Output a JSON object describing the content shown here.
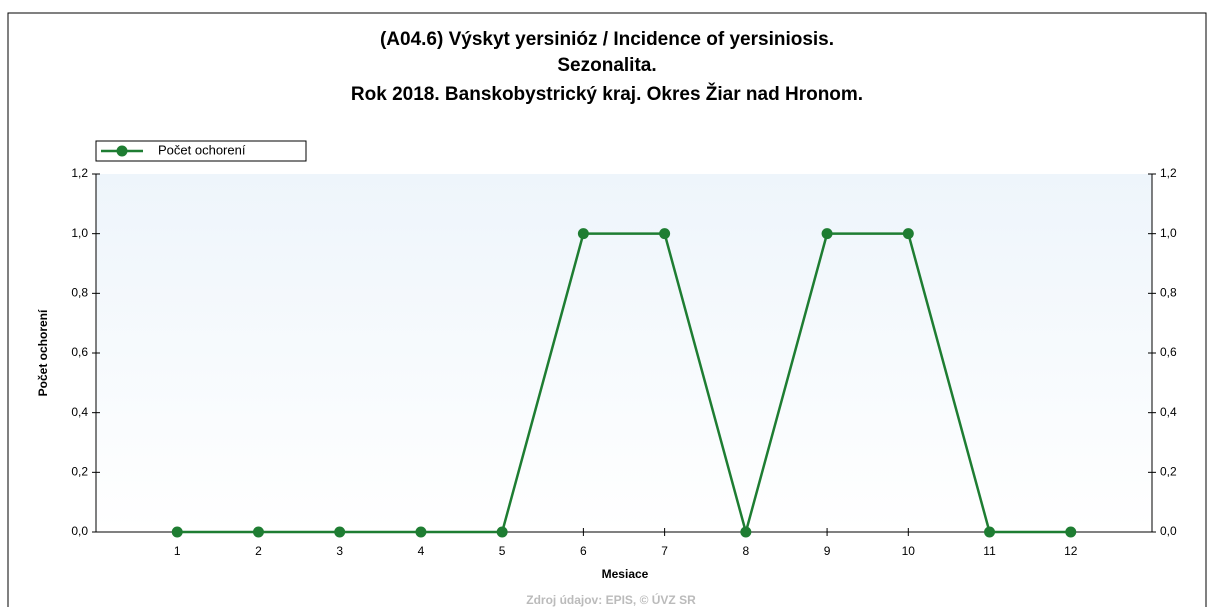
{
  "chart_data": {
    "type": "line",
    "title": [
      "(A04.6) Výskyt yersinióz / Incidence of yersiniosis.",
      "Sezonalita.",
      "Rok 2018. Banskobystrický kraj. Okres Žiar nad Hronom."
    ],
    "x": [
      1,
      2,
      3,
      4,
      5,
      6,
      7,
      8,
      9,
      10,
      11,
      12
    ],
    "series": [
      {
        "name": "Počet ochorení",
        "color": "#1e7d32",
        "values": [
          0,
          0,
          0,
          0,
          0,
          1,
          1,
          0,
          1,
          1,
          0,
          0
        ]
      }
    ],
    "xlim": [
      0,
      13
    ],
    "xticks": [
      1,
      2,
      3,
      4,
      5,
      6,
      7,
      8,
      9,
      10,
      11,
      12
    ],
    "ylim": [
      0,
      1.2
    ],
    "yticks": [
      {
        "value": 0,
        "label": "0,0"
      },
      {
        "value": 0.2,
        "label": "0,2"
      },
      {
        "value": 0.4,
        "label": "0,4"
      },
      {
        "value": 0.6,
        "label": "0,6"
      },
      {
        "value": 0.8,
        "label": "0,8"
      },
      {
        "value": 1.0,
        "label": "1,0"
      },
      {
        "value": 1.2,
        "label": "1,2"
      }
    ],
    "xlabel": "Mesiace",
    "ylabel": "Počet ochorení",
    "source": "Zdroj údajov: EPIS, © ÚVZ SR",
    "legend": "top-left"
  }
}
